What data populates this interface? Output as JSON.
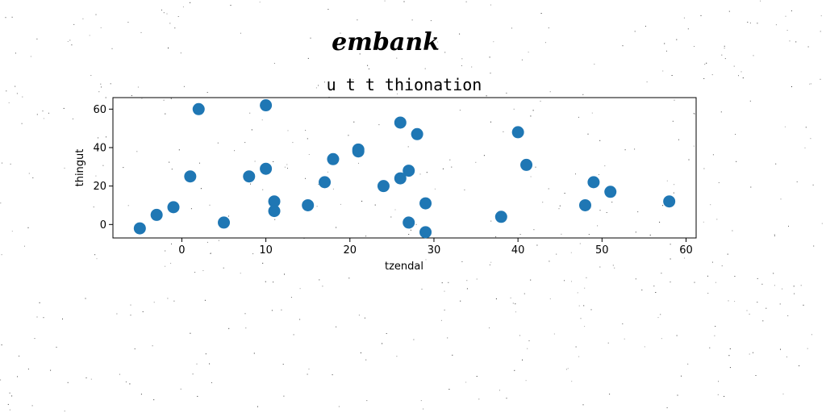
{
  "brand": "embank",
  "colors": {
    "marker": "#1f77b4",
    "noise": "#000000"
  },
  "chart_data": {
    "type": "scatter",
    "title": "u t t thionation",
    "xlabel": "tzendal",
    "ylabel": "thingut",
    "xlim": [
      -8.2,
      61.2
    ],
    "ylim": [
      -7,
      66
    ],
    "xticks": [
      0,
      10,
      20,
      30,
      40,
      50,
      60
    ],
    "yticks": [
      0,
      20,
      40,
      60
    ],
    "grid": false,
    "legend": "none",
    "points": [
      {
        "x": -5,
        "y": -2
      },
      {
        "x": -3,
        "y": 5
      },
      {
        "x": -1,
        "y": 9
      },
      {
        "x": 1,
        "y": 25
      },
      {
        "x": 2,
        "y": 60
      },
      {
        "x": 5,
        "y": 1
      },
      {
        "x": 8,
        "y": 25
      },
      {
        "x": 10,
        "y": 29
      },
      {
        "x": 10,
        "y": 62
      },
      {
        "x": 11,
        "y": 12
      },
      {
        "x": 11,
        "y": 7
      },
      {
        "x": 15,
        "y": 10
      },
      {
        "x": 17,
        "y": 22
      },
      {
        "x": 18,
        "y": 34
      },
      {
        "x": 21,
        "y": 39
      },
      {
        "x": 21,
        "y": 38
      },
      {
        "x": 24,
        "y": 20
      },
      {
        "x": 26,
        "y": 53
      },
      {
        "x": 26,
        "y": 24
      },
      {
        "x": 27,
        "y": 28
      },
      {
        "x": 27,
        "y": 1
      },
      {
        "x": 28,
        "y": 47
      },
      {
        "x": 29,
        "y": 11
      },
      {
        "x": 29,
        "y": -4
      },
      {
        "x": 38,
        "y": 4
      },
      {
        "x": 40,
        "y": 48
      },
      {
        "x": 41,
        "y": 31
      },
      {
        "x": 48,
        "y": 10
      },
      {
        "x": 49,
        "y": 22
      },
      {
        "x": 51,
        "y": 17
      },
      {
        "x": 58,
        "y": 12
      }
    ]
  }
}
